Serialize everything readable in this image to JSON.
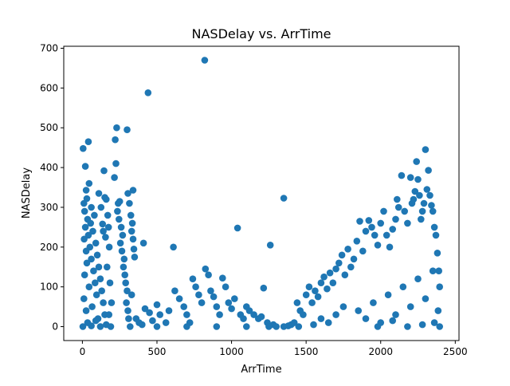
{
  "chart_data": {
    "type": "scatter",
    "title": "NASDelay vs. ArrTime",
    "xlabel": "ArrTime",
    "ylabel": "NASDelay",
    "xlim": [
      -125,
      2525
    ],
    "ylim": [
      -35,
      705
    ],
    "xticks": [
      0,
      500,
      1000,
      1500,
      2000,
      2500
    ],
    "yticks": [
      0,
      100,
      200,
      300,
      400,
      500,
      600,
      700
    ],
    "xtick_labels": [
      "0",
      "500",
      "1000",
      "1500",
      "2000",
      "2500"
    ],
    "ytick_labels": [
      "0",
      "100",
      "200",
      "300",
      "400",
      "500",
      "600",
      "700"
    ],
    "grid": false,
    "legend": false,
    "marker_color": "#1f77b4",
    "series": [
      {
        "points": [
          [
            5,
            448
          ],
          [
            40,
            465
          ],
          [
            20,
            403
          ],
          [
            45,
            360
          ],
          [
            25,
            343
          ],
          [
            30,
            322
          ],
          [
            10,
            310
          ],
          [
            60,
            300
          ],
          [
            15,
            290
          ],
          [
            80,
            280
          ],
          [
            35,
            270
          ],
          [
            55,
            260
          ],
          [
            20,
            250
          ],
          [
            70,
            240
          ],
          [
            40,
            230
          ],
          [
            12,
            220
          ],
          [
            90,
            210
          ],
          [
            50,
            200
          ],
          [
            25,
            190
          ],
          [
            100,
            180
          ],
          [
            60,
            170
          ],
          [
            30,
            160
          ],
          [
            110,
            150
          ],
          [
            75,
            140
          ],
          [
            15,
            130
          ],
          [
            120,
            120
          ],
          [
            85,
            110
          ],
          [
            45,
            100
          ],
          [
            130,
            90
          ],
          [
            95,
            80
          ],
          [
            10,
            70
          ],
          [
            140,
            60
          ],
          [
            65,
            50
          ],
          [
            25,
            40
          ],
          [
            150,
            30
          ],
          [
            105,
            20
          ],
          [
            35,
            10
          ],
          [
            160,
            5
          ],
          [
            3,
            0
          ],
          [
            120,
            0
          ],
          [
            60,
            2
          ],
          [
            90,
            15
          ],
          [
            110,
            335
          ],
          [
            125,
            300
          ],
          [
            135,
            258
          ],
          [
            140,
            240
          ],
          [
            155,
            225
          ],
          [
            145,
            392
          ],
          [
            150,
            325
          ],
          [
            160,
            320
          ],
          [
            170,
            280
          ],
          [
            175,
            250
          ],
          [
            180,
            200
          ],
          [
            165,
            150
          ],
          [
            185,
            110
          ],
          [
            195,
            60
          ],
          [
            178,
            30
          ],
          [
            190,
            0
          ],
          [
            230,
            500
          ],
          [
            220,
            470
          ],
          [
            215,
            375
          ],
          [
            225,
            410
          ],
          [
            240,
            310
          ],
          [
            250,
            315
          ],
          [
            235,
            290
          ],
          [
            245,
            270
          ],
          [
            260,
            250
          ],
          [
            270,
            230
          ],
          [
            255,
            210
          ],
          [
            265,
            190
          ],
          [
            280,
            170
          ],
          [
            275,
            150
          ],
          [
            285,
            130
          ],
          [
            290,
            110
          ],
          [
            300,
            90
          ],
          [
            295,
            60
          ],
          [
            305,
            40
          ],
          [
            310,
            20
          ],
          [
            320,
            0
          ],
          [
            300,
            495
          ],
          [
            305,
            335
          ],
          [
            315,
            310
          ],
          [
            325,
            280
          ],
          [
            335,
            260
          ],
          [
            330,
            240
          ],
          [
            340,
            220
          ],
          [
            345,
            195
          ],
          [
            350,
            175
          ],
          [
            340,
            343
          ],
          [
            330,
            80
          ],
          [
            360,
            20
          ],
          [
            380,
            10
          ],
          [
            400,
            5
          ],
          [
            420,
            45
          ],
          [
            410,
            210
          ],
          [
            440,
            588
          ],
          [
            450,
            35
          ],
          [
            470,
            15
          ],
          [
            500,
            55
          ],
          [
            520,
            30
          ],
          [
            560,
            10
          ],
          [
            580,
            40
          ],
          [
            610,
            200
          ],
          [
            620,
            90
          ],
          [
            650,
            70
          ],
          [
            680,
            50
          ],
          [
            700,
            30
          ],
          [
            720,
            10
          ],
          [
            740,
            120
          ],
          [
            760,
            100
          ],
          [
            780,
            80
          ],
          [
            800,
            60
          ],
          [
            820,
            670
          ],
          [
            825,
            145
          ],
          [
            845,
            130
          ],
          [
            860,
            90
          ],
          [
            880,
            75
          ],
          [
            900,
            50
          ],
          [
            920,
            30
          ],
          [
            940,
            122
          ],
          [
            960,
            100
          ],
          [
            980,
            60
          ],
          [
            1000,
            45
          ],
          [
            1020,
            70
          ],
          [
            1040,
            248
          ],
          [
            1060,
            30
          ],
          [
            1080,
            20
          ],
          [
            1100,
            50
          ],
          [
            1120,
            40
          ],
          [
            1150,
            30
          ],
          [
            1180,
            20
          ],
          [
            1200,
            25
          ],
          [
            1215,
            97
          ],
          [
            1240,
            10
          ],
          [
            1260,
            205
          ],
          [
            1280,
            5
          ],
          [
            1300,
            0
          ],
          [
            1350,
            323
          ],
          [
            1380,
            2
          ],
          [
            1400,
            5
          ],
          [
            1420,
            10
          ],
          [
            1440,
            60
          ],
          [
            1460,
            40
          ],
          [
            1480,
            30
          ],
          [
            1500,
            80
          ],
          [
            1520,
            100
          ],
          [
            1540,
            60
          ],
          [
            1560,
            90
          ],
          [
            1580,
            75
          ],
          [
            1600,
            110
          ],
          [
            1620,
            125
          ],
          [
            1640,
            95
          ],
          [
            1660,
            135
          ],
          [
            1680,
            110
          ],
          [
            1700,
            145
          ],
          [
            1720,
            160
          ],
          [
            1740,
            180
          ],
          [
            1760,
            130
          ],
          [
            1780,
            195
          ],
          [
            1800,
            150
          ],
          [
            1820,
            170
          ],
          [
            1840,
            215
          ],
          [
            1860,
            265
          ],
          [
            1880,
            190
          ],
          [
            1900,
            240
          ],
          [
            1920,
            267
          ],
          [
            1940,
            250
          ],
          [
            1960,
            230
          ],
          [
            1980,
            205
          ],
          [
            2000,
            260
          ],
          [
            2020,
            290
          ],
          [
            2040,
            230
          ],
          [
            2060,
            200
          ],
          [
            2080,
            245
          ],
          [
            2100,
            270
          ],
          [
            2110,
            320
          ],
          [
            2120,
            300
          ],
          [
            2140,
            380
          ],
          [
            2160,
            290
          ],
          [
            2180,
            260
          ],
          [
            2200,
            375
          ],
          [
            2210,
            310
          ],
          [
            2220,
            320
          ],
          [
            2230,
            340
          ],
          [
            2240,
            415
          ],
          [
            2250,
            370
          ],
          [
            2260,
            330
          ],
          [
            2270,
            270
          ],
          [
            2280,
            290
          ],
          [
            2290,
            310
          ],
          [
            2300,
            445
          ],
          [
            2310,
            345
          ],
          [
            2320,
            393
          ],
          [
            2330,
            330
          ],
          [
            2340,
            305
          ],
          [
            2350,
            290
          ],
          [
            2360,
            250
          ],
          [
            2370,
            230
          ],
          [
            2380,
            185
          ],
          [
            2390,
            140
          ],
          [
            2395,
            100
          ],
          [
            1850,
            40
          ],
          [
            1950,
            60
          ],
          [
            2050,
            80
          ],
          [
            2150,
            100
          ],
          [
            2250,
            120
          ],
          [
            2350,
            140
          ],
          [
            1900,
            20
          ],
          [
            2000,
            10
          ],
          [
            2100,
            30
          ],
          [
            2200,
            50
          ],
          [
            2300,
            70
          ],
          [
            2385,
            40
          ],
          [
            1600,
            20
          ],
          [
            1700,
            30
          ],
          [
            1750,
            50
          ],
          [
            1650,
            10
          ],
          [
            1550,
            5
          ],
          [
            1450,
            0
          ],
          [
            2395,
            0
          ],
          [
            2360,
            10
          ],
          [
            2280,
            5
          ],
          [
            2180,
            0
          ],
          [
            2080,
            15
          ],
          [
            1980,
            0
          ],
          [
            500,
            0
          ],
          [
            700,
            0
          ],
          [
            900,
            0
          ],
          [
            1100,
            0
          ],
          [
            1250,
            0
          ],
          [
            1350,
            0
          ]
        ]
      }
    ]
  }
}
